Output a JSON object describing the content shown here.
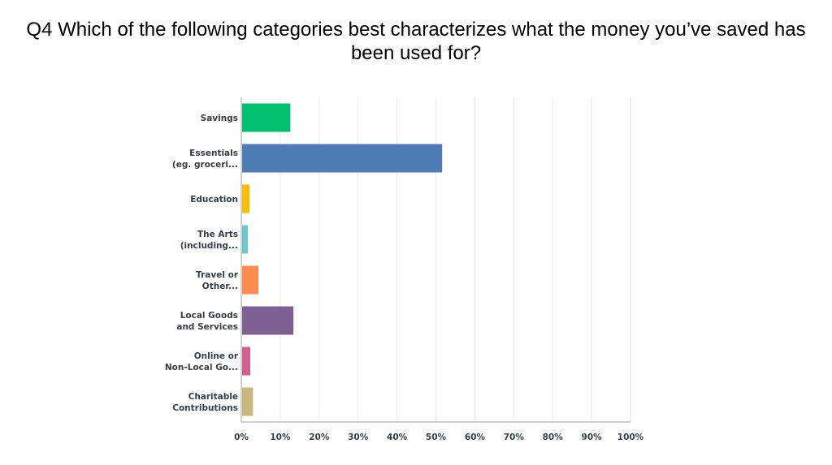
{
  "chart_data": {
    "type": "bar",
    "orientation": "horizontal",
    "title": "Q4 Which of the following categories best characterizes what the money you’ve saved has been used for?",
    "categories": [
      [
        "Savings"
      ],
      [
        "Essentials",
        "(eg. groceri..."
      ],
      [
        "Education"
      ],
      [
        "The Arts",
        "(including..."
      ],
      [
        "Travel or",
        "Other..."
      ],
      [
        "Local Goods",
        "and Services"
      ],
      [
        "Online or",
        "Non-Local Go..."
      ],
      [
        "Charitable",
        "Contributions"
      ]
    ],
    "values": [
      12.6,
      51.6,
      2.1,
      1.7,
      4.4,
      13.4,
      2.3,
      3.0
    ],
    "colors": [
      "#00bf6f",
      "#507cb6",
      "#f9be00",
      "#6bc8cd",
      "#ff8b4f",
      "#7f6093",
      "#d25f90",
      "#c9b77f"
    ],
    "xlim": [
      0,
      100
    ],
    "xticks": [
      "0%",
      "10%",
      "20%",
      "30%",
      "40%",
      "50%",
      "60%",
      "70%",
      "80%",
      "90%",
      "100%"
    ],
    "grid": true,
    "xlabel": "",
    "ylabel": ""
  }
}
